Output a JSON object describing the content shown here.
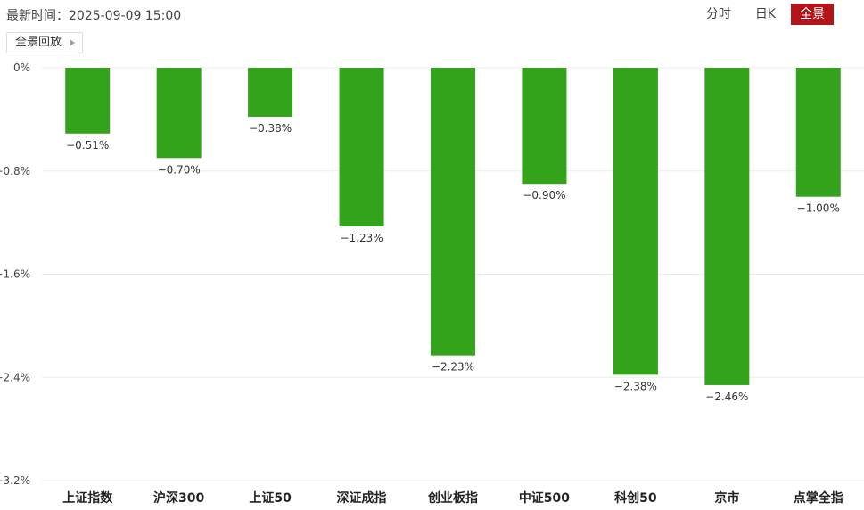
{
  "header": {
    "update_time": "最新时间：2025-09-09 15:00",
    "tabs": [
      {
        "label": "分时",
        "active": false
      },
      {
        "label": "日K",
        "active": false
      },
      {
        "label": "全景",
        "active": true
      }
    ]
  },
  "replay": {
    "label": "全景回放",
    "icon": "play-icon"
  },
  "colors": {
    "bar": "#33a31c",
    "active_tab": "#b3151a",
    "grid": "#ebebeb"
  },
  "chart_data": {
    "type": "bar",
    "categories": [
      "上证指数",
      "沪深300",
      "上证50",
      "深证成指",
      "创业板指",
      "中证500",
      "科创50",
      "京市",
      "点掌全指"
    ],
    "values": [
      -0.51,
      -0.7,
      -0.38,
      -1.23,
      -2.23,
      -0.9,
      -2.38,
      -2.46,
      -1.0
    ],
    "value_labels": [
      "−0.51%",
      "−0.70%",
      "−0.38%",
      "−1.23%",
      "−2.23%",
      "−0.90%",
      "−2.38%",
      "−2.46%",
      "−1.00%"
    ],
    "ylim": [
      -3.2,
      0
    ],
    "yticks": [
      0,
      -0.8,
      -1.6,
      -2.4,
      -3.2
    ],
    "ytick_labels": [
      "0%",
      "−0.8%",
      "−1.6%",
      "−2.4%",
      "−3.2%"
    ],
    "grid": true,
    "unit": "%"
  }
}
